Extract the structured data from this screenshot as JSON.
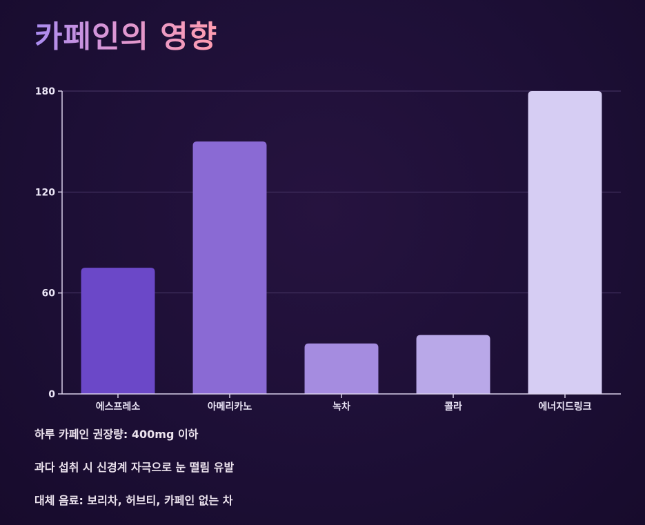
{
  "title": "카페인의 영향",
  "chart_data": {
    "type": "bar",
    "categories": [
      "에스프레소",
      "아메리카노",
      "녹차",
      "콜라",
      "에너지드링크"
    ],
    "values": [
      75,
      150,
      30,
      35,
      180
    ],
    "colors": [
      "#6b48c8",
      "#8a6ad4",
      "#a58ce0",
      "#b9a8e8",
      "#d6cdf3"
    ],
    "yticks": [
      0,
      60,
      120,
      180
    ],
    "ylim": [
      0,
      180
    ],
    "grid": true,
    "legend": "none"
  },
  "notes": [
    "하루 카페인 권장량: 400mg 이하",
    "과다 섭취 시 신경계 자극으로 눈 떨림 유발",
    "대체 음료: 보리차, 허브티, 카페인 없는 차"
  ]
}
